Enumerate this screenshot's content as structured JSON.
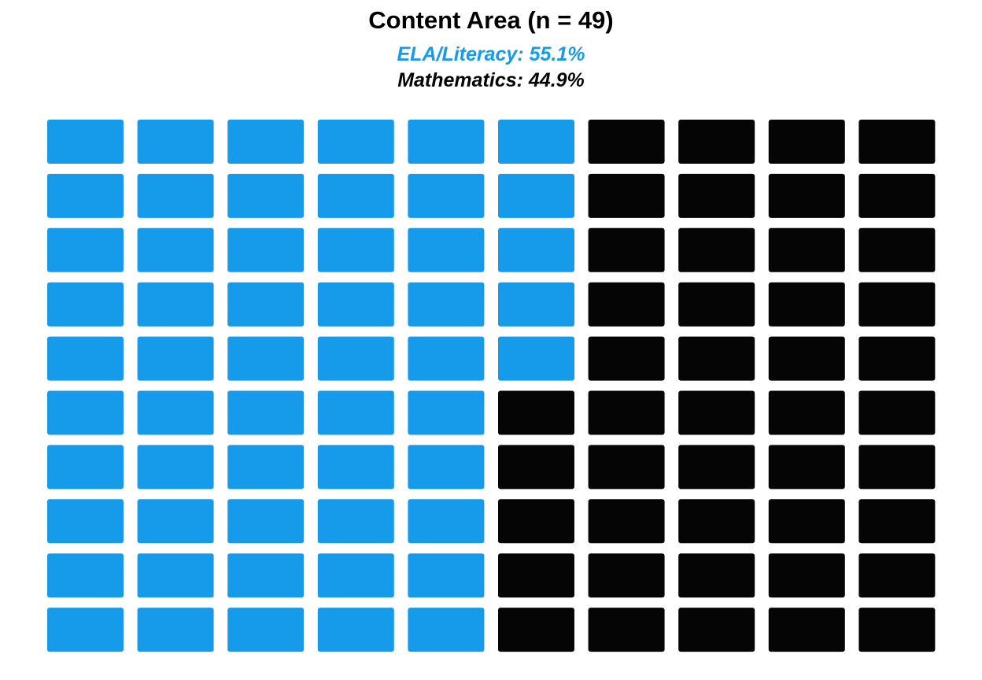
{
  "chart_data": {
    "type": "waffle",
    "title": "Content Area (n = 49)",
    "grid": {
      "rows": 10,
      "cols": 10
    },
    "fill_order": "column-major",
    "series": [
      {
        "name": "ELA/Literacy",
        "label": "ELA/Literacy: 55.1%",
        "value": 55.1,
        "cells": 55,
        "color": "#159BEA"
      },
      {
        "name": "Mathematics",
        "label": "Mathematics: 44.9%",
        "value": 44.9,
        "cells": 45,
        "color": "#050505"
      }
    ]
  }
}
